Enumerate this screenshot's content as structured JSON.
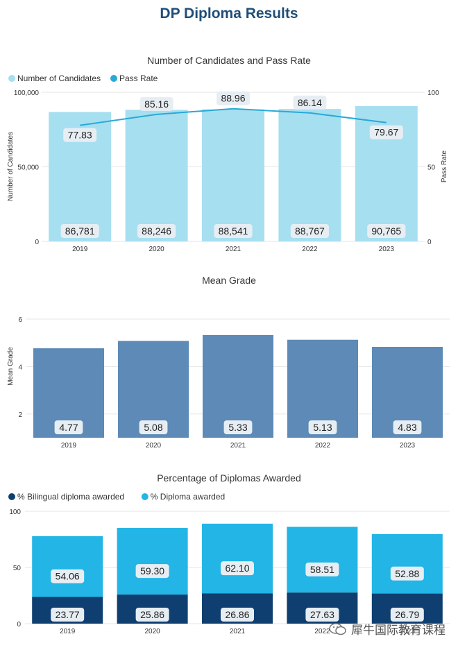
{
  "page": {
    "title": "DP Diploma Results"
  },
  "colors": {
    "candidates_bar": "#a6dff0",
    "pass_rate_line": "#29a9d8",
    "mean_grade_bar": "#5d8ab6",
    "bilingual": "#0f3f70",
    "diploma": "#22b5e6",
    "label_bg": "#e7eef3"
  },
  "watermark": {
    "text": "犀牛国际教育课程"
  },
  "chart_data": [
    {
      "type": "bar",
      "title": "Number of Candidates and Pass Rate",
      "categories": [
        "2019",
        "2020",
        "2021",
        "2022",
        "2023"
      ],
      "legend": [
        "Number of Candidates",
        "Pass Rate"
      ],
      "legend_position": "top-left",
      "series": [
        {
          "name": "Number of Candidates",
          "type": "bar",
          "axis": "left",
          "values": [
            86781,
            88246,
            88541,
            88767,
            90765
          ],
          "labels": [
            "86,781",
            "88,246",
            "88,541",
            "88,767",
            "90,765"
          ]
        },
        {
          "name": "Pass Rate",
          "type": "line",
          "axis": "right",
          "values": [
            77.83,
            85.16,
            88.96,
            86.14,
            79.67
          ],
          "labels": [
            "77.83",
            "85.16",
            "88.96",
            "86.14",
            "79.67"
          ]
        }
      ],
      "ylabel": "Number of Candidates",
      "ylim": [
        0,
        100000
      ],
      "yticks": [
        "0",
        "50,000",
        "100,000"
      ],
      "y2label": "Pass Rate",
      "y2lim": [
        0,
        100
      ],
      "y2ticks": [
        "0",
        "50",
        "100"
      ],
      "grid": true
    },
    {
      "type": "bar",
      "title": "Mean Grade",
      "categories": [
        "2019",
        "2020",
        "2021",
        "2022",
        "2023"
      ],
      "values": [
        4.77,
        5.08,
        5.33,
        5.13,
        4.83
      ],
      "labels": [
        "4.77",
        "5.08",
        "5.33",
        "5.13",
        "4.83"
      ],
      "ylabel": "Mean Grade",
      "ylim": [
        1,
        6
      ],
      "yticks": [
        "2",
        "4",
        "6"
      ],
      "grid": true
    },
    {
      "type": "bar",
      "stacked": true,
      "title": "Percentage of Diplomas Awarded",
      "categories": [
        "2019",
        "2020",
        "2021",
        "2022",
        "2023"
      ],
      "legend": [
        "% Bilingual diploma awarded",
        "% Diploma awarded"
      ],
      "legend_position": "top-left",
      "series": [
        {
          "name": "% Bilingual diploma awarded",
          "values": [
            23.77,
            25.86,
            26.86,
            27.63,
            26.79
          ],
          "labels": [
            "23.77",
            "25.86",
            "26.86",
            "27.63",
            "26.79"
          ]
        },
        {
          "name": "% Diploma awarded",
          "values": [
            54.06,
            59.3,
            62.1,
            58.51,
            52.88
          ],
          "labels": [
            "54.06",
            "59.30",
            "62.10",
            "58.51",
            "52.88"
          ]
        }
      ],
      "ylim": [
        0,
        100
      ],
      "yticks": [
        "0",
        "50",
        "100"
      ],
      "grid": true
    }
  ]
}
